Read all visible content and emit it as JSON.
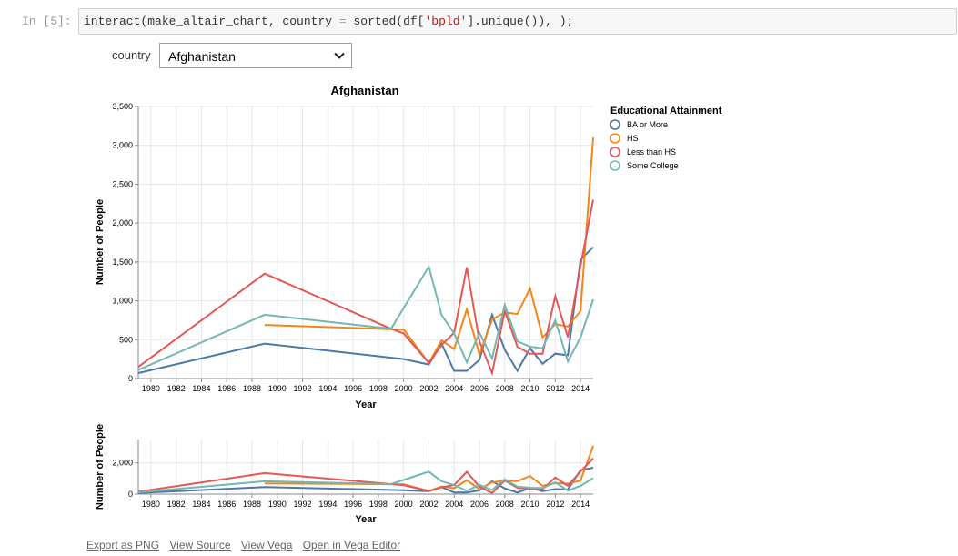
{
  "cell": {
    "prompt": "In [5]:",
    "code": {
      "prefix": "interact(make_altair_chart, country ",
      "eq": "=",
      "mid": " sorted(df[",
      "str": "'bpld'",
      "suffix": "].unique()), );"
    }
  },
  "widget": {
    "label": "country",
    "selected": "Afghanistan"
  },
  "chart": {
    "title": "Afghanistan",
    "ylabel": "Number of People",
    "xlabel": "Year",
    "legend_title": "Educational Attainment"
  },
  "colors": {
    "BA or More": "#4c78a8",
    "HS": "#f58518",
    "Less than HS": "#e45756",
    "Some College": "#72b7b2"
  },
  "icons": {
    "dropdown": "chevron-down-icon"
  },
  "chart_data": [
    {
      "type": "line",
      "title": "Afghanistan",
      "xlabel": "Year",
      "ylabel": "Number of People",
      "xlim": [
        1979,
        2015
      ],
      "ylim": [
        0,
        3500
      ],
      "x_ticks": [
        1980,
        1982,
        1984,
        1986,
        1988,
        1990,
        1992,
        1994,
        1996,
        1998,
        2000,
        2002,
        2004,
        2006,
        2008,
        2010,
        2012,
        2014
      ],
      "y_ticks": [
        0,
        500,
        1000,
        1500,
        2000,
        2500,
        3000,
        3500
      ],
      "y_tick_labels": [
        "0",
        "500",
        "1,000",
        "1,500",
        "2,000",
        "2,500",
        "3,000",
        "3,500"
      ],
      "grid": true,
      "legend": "right",
      "series": [
        {
          "name": "BA or More",
          "x": [
            1979,
            1989,
            2000,
            2002,
            2003,
            2004,
            2005,
            2006,
            2007,
            2008,
            2009,
            2010,
            2011,
            2012,
            2013,
            2014,
            2015
          ],
          "y": [
            70,
            450,
            250,
            180,
            450,
            100,
            100,
            240,
            820,
            370,
            100,
            390,
            190,
            320,
            300,
            1530,
            1690
          ]
        },
        {
          "name": "HS",
          "x": [
            1989,
            2000,
            2002,
            2003,
            2004,
            2005,
            2006,
            2007,
            2008,
            2009,
            2010,
            2011,
            2012,
            2013,
            2014,
            2015
          ],
          "y": [
            690,
            630,
            200,
            490,
            380,
            890,
            310,
            760,
            850,
            830,
            1160,
            530,
            700,
            670,
            870,
            3100
          ]
        },
        {
          "name": "Less than HS",
          "x": [
            1979,
            1989,
            1999,
            2000,
            2002,
            2003,
            2004,
            2005,
            2006,
            2007,
            2008,
            2009,
            2010,
            2011,
            2012,
            2013,
            2014,
            2015
          ],
          "y": [
            150,
            1350,
            640,
            580,
            200,
            430,
            590,
            1430,
            480,
            70,
            870,
            410,
            320,
            320,
            1060,
            530,
            1450,
            2300
          ]
        },
        {
          "name": "Some College",
          "x": [
            1979,
            1989,
            1999,
            2002,
            2003,
            2004,
            2005,
            2006,
            2007,
            2008,
            2009,
            2010,
            2011,
            2012,
            2013,
            2014,
            2015
          ],
          "y": [
            110,
            820,
            640,
            1440,
            820,
            580,
            210,
            590,
            260,
            950,
            480,
            410,
            390,
            750,
            220,
            530,
            1020
          ]
        }
      ]
    },
    {
      "type": "line",
      "xlabel": "Year",
      "ylabel": "Number of People",
      "xlim": [
        1979,
        2015
      ],
      "ylim": [
        0,
        3500
      ],
      "x_ticks": [
        1980,
        1982,
        1984,
        1986,
        1988,
        1990,
        1992,
        1994,
        1996,
        1998,
        2000,
        2002,
        2004,
        2006,
        2008,
        2010,
        2012,
        2014
      ],
      "y_ticks": [
        0,
        2000
      ],
      "y_tick_labels": [
        "0",
        "2,000"
      ],
      "grid": true,
      "series_ref": "same as main chart"
    }
  ],
  "footer_links": [
    "Export as PNG",
    "View Source",
    "View Vega",
    "Open in Vega Editor"
  ]
}
